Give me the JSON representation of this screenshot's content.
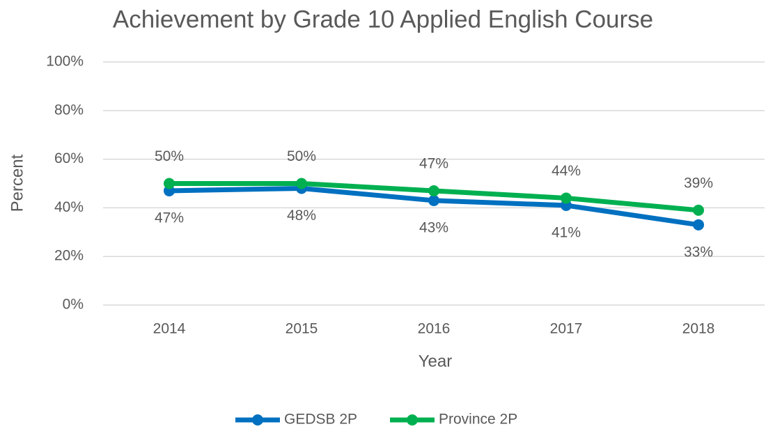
{
  "chart_data": {
    "type": "line",
    "title": "Achievement by Grade 10 Applied English Course",
    "x_label": "Year",
    "y_label": "Percent",
    "categories": [
      "2014",
      "2015",
      "2016",
      "2017",
      "2018"
    ],
    "series": [
      {
        "name": "GEDSB 2P",
        "color": "#0070c0",
        "values": [
          47,
          48,
          43,
          41,
          33
        ],
        "value_labels": [
          "47%",
          "48%",
          "43%",
          "41%",
          "33%"
        ]
      },
      {
        "name": "Province 2P",
        "color": "#00b050",
        "values": [
          50,
          50,
          47,
          44,
          39
        ],
        "value_labels": [
          "50%",
          "50%",
          "47%",
          "44%",
          "39%"
        ]
      }
    ],
    "ylim": [
      0,
      100
    ],
    "yticks": [
      {
        "value": 0,
        "label": "0%"
      },
      {
        "value": 20,
        "label": "20%"
      },
      {
        "value": 40,
        "label": "40%"
      },
      {
        "value": 60,
        "label": "60%"
      },
      {
        "value": 80,
        "label": "80%"
      },
      {
        "value": 100,
        "label": "100%"
      }
    ],
    "grid": true,
    "legend": "bottom"
  }
}
